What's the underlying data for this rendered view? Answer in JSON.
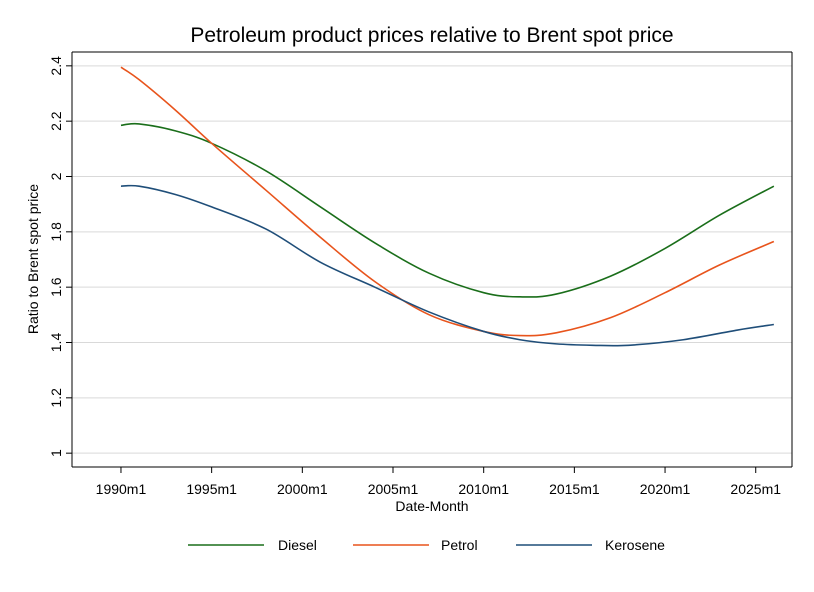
{
  "chart_data": {
    "type": "line",
    "title": "Petroleum product prices relative to Brent spot price",
    "xlabel": "Date-Month",
    "ylabel": "Ratio to Brent spot price",
    "xlim": [
      1987.3,
      2027.0
    ],
    "ylim": [
      0.95,
      2.45
    ],
    "x_ticks": [
      {
        "value": 1990,
        "label": "1990m1"
      },
      {
        "value": 1995,
        "label": "1995m1"
      },
      {
        "value": 2000,
        "label": "2000m1"
      },
      {
        "value": 2005,
        "label": "2005m1"
      },
      {
        "value": 2010,
        "label": "2010m1"
      },
      {
        "value": 2015,
        "label": "2015m1"
      },
      {
        "value": 2020,
        "label": "2020m1"
      },
      {
        "value": 2025,
        "label": "2025m1"
      }
    ],
    "y_ticks": [
      {
        "value": 1.0,
        "label": "1"
      },
      {
        "value": 1.2,
        "label": "1.2"
      },
      {
        "value": 1.4,
        "label": "1.4"
      },
      {
        "value": 1.6,
        "label": "1.6"
      },
      {
        "value": 1.8,
        "label": "1.8"
      },
      {
        "value": 2.0,
        "label": "2"
      },
      {
        "value": 2.2,
        "label": "2.2"
      },
      {
        "value": 2.4,
        "label": "2.4"
      }
    ],
    "grid": true,
    "legend_position": "bottom",
    "series": [
      {
        "name": "Diesel",
        "color": "#1a6e1a",
        "x": [
          1990,
          1991,
          1993,
          1995,
          1998,
          2001,
          2004,
          2007,
          2010,
          2012,
          2014,
          2017,
          2020,
          2023,
          2026
        ],
        "y": [
          2.185,
          2.19,
          2.165,
          2.12,
          2.02,
          1.89,
          1.76,
          1.65,
          1.58,
          1.565,
          1.575,
          1.64,
          1.74,
          1.86,
          1.965
        ]
      },
      {
        "name": "Petrol",
        "color": "#e8541c",
        "x": [
          1990,
          1991,
          1993,
          1995,
          1998,
          2001,
          2004,
          2007,
          2010,
          2012,
          2014,
          2017,
          2020,
          2023,
          2026
        ],
        "y": [
          2.395,
          2.35,
          2.24,
          2.12,
          1.95,
          1.78,
          1.62,
          1.5,
          1.44,
          1.425,
          1.435,
          1.49,
          1.58,
          1.68,
          1.765
        ]
      },
      {
        "name": "Kerosene",
        "color": "#1f4e79",
        "x": [
          1990,
          1991,
          1993,
          1995,
          1998,
          2001,
          2004,
          2007,
          2010,
          2012,
          2014,
          2016,
          2018,
          2021,
          2024,
          2026
        ],
        "y": [
          1.965,
          1.965,
          1.935,
          1.89,
          1.81,
          1.69,
          1.6,
          1.51,
          1.44,
          1.41,
          1.395,
          1.39,
          1.39,
          1.41,
          1.445,
          1.465
        ]
      }
    ]
  }
}
